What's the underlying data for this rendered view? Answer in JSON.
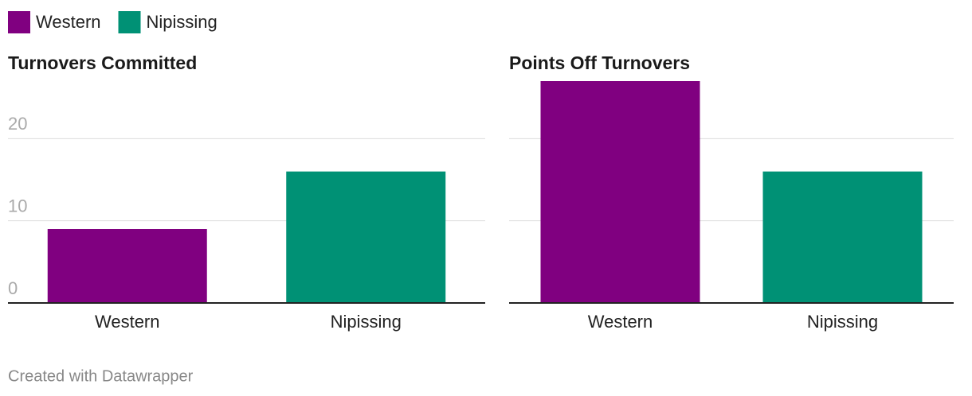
{
  "legend": [
    {
      "name": "Western",
      "color": "#800080"
    },
    {
      "name": "Nipissing",
      "color": "#009175"
    }
  ],
  "chart_data": [
    {
      "type": "bar",
      "title": "Turnovers Committed",
      "categories": [
        "Western",
        "Nipissing"
      ],
      "values": [
        9,
        16
      ],
      "colors": [
        "#800080",
        "#009175"
      ],
      "ylim": [
        0,
        27
      ],
      "yticks": [
        0,
        10,
        20
      ],
      "grid": true,
      "tick_labels": true
    },
    {
      "type": "bar",
      "title": "Points Off Turnovers",
      "categories": [
        "Western",
        "Nipissing"
      ],
      "values": [
        27,
        16
      ],
      "colors": [
        "#800080",
        "#009175"
      ],
      "ylim": [
        0,
        27
      ],
      "yticks": [
        0,
        10,
        20
      ],
      "grid": true,
      "tick_labels": false
    }
  ],
  "footer": "Created with Datawrapper"
}
